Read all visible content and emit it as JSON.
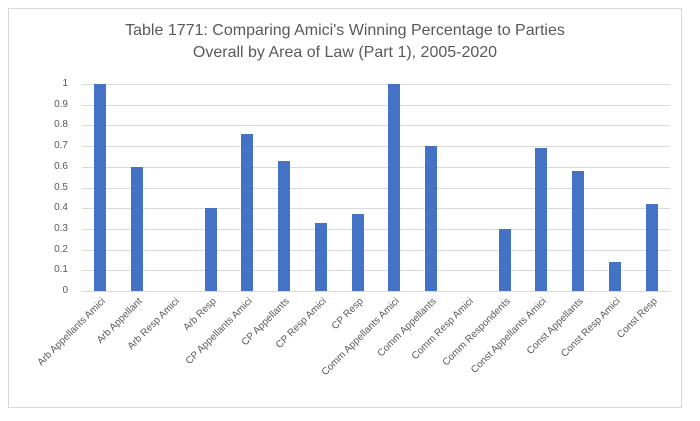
{
  "window": {
    "background_color": "#FFFFFF",
    "frame_border_color": "#D9D9D9"
  },
  "chart": {
    "title_line1": "Table 1771: Comparing Amici's Winning Percentage to Parties",
    "title_line2": "Overall by Area of Law (Part 1), 2005-2020"
  },
  "chart_data": {
    "type": "bar",
    "title": "Table 1771: Comparing Amici's Winning Percentage to Parties Overall by Area of Law (Part 1), 2005-2020",
    "categories": [
      "Arb Appellants Amici",
      "Arb Appellant",
      "Arb Resp Amici",
      "Arb Resp",
      "CP Appellants Amici",
      "CP Appellants",
      "CP Resp Amici",
      "CP Resp",
      "Comm Appellants Amici",
      "Comm Appellants",
      "Comm Resp Amici",
      "Comm Respondents",
      "Const Appellants Amici",
      "Const Appellants",
      "Const Resp Amici",
      "Const Resp"
    ],
    "values": [
      1,
      0.6,
      0,
      0.4,
      0.76,
      0.63,
      0.33,
      0.37,
      1,
      0.7,
      0,
      0.3,
      0.69,
      0.58,
      0.14,
      0.42
    ],
    "xlabel": "",
    "ylabel": "",
    "ylim": [
      0,
      1
    ],
    "yticks": [
      0,
      0.1,
      0.2,
      0.3,
      0.4,
      0.5,
      0.6,
      0.7,
      0.8,
      0.9,
      1
    ],
    "ytick_labels": [
      "0",
      "0.1",
      "0.2",
      "0.3",
      "0.4",
      "0.5",
      "0.6",
      "0.7",
      "0.8",
      "0.9",
      "1"
    ],
    "x_tick_rotation_deg": 45,
    "grid": true,
    "legend": false,
    "bar_color": "#4472C4",
    "title_color": "#595959",
    "axis_text_color": "#595959",
    "gridline_color": "#D9D9D9"
  }
}
